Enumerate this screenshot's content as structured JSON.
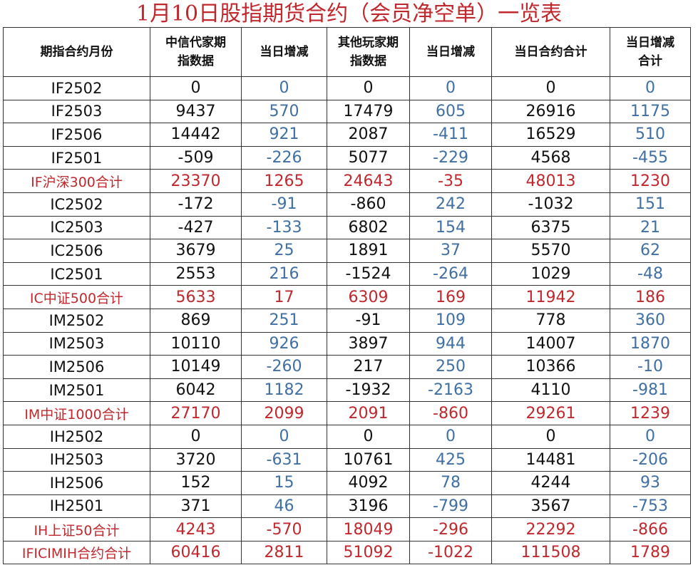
{
  "title": "1月10日股指期货合约（会员净空单）一览表",
  "table": {
    "header": [
      "期指合约月份",
      "中信代家期指数据",
      "当日增减",
      "其他玩家期指数据",
      "当日增减",
      "当日合约合计",
      "当日增减合计"
    ],
    "rows": [
      [
        "IF2502",
        0,
        0,
        0,
        0,
        0,
        0
      ],
      [
        "IF2503",
        9437,
        570,
        17479,
        605,
        26916,
        1175
      ],
      [
        "IF2506",
        14442,
        921,
        2087,
        -411,
        16529,
        510
      ],
      [
        "IF2501",
        -509,
        -226,
        5077,
        -229,
        4568,
        -455
      ],
      [
        "IF沪深300合计",
        23370,
        1265,
        24643,
        -35,
        48013,
        1230
      ],
      [
        "IC2502",
        -172,
        -91,
        -860,
        242,
        -1032,
        151
      ],
      [
        "IC2503",
        -427,
        -133,
        6802,
        154,
        6375,
        21
      ],
      [
        "IC2506",
        3679,
        25,
        1891,
        37,
        5570,
        62
      ],
      [
        "IC2501",
        2553,
        216,
        -1524,
        -264,
        1029,
        -48
      ],
      [
        "IC中证500合计",
        5633,
        17,
        6309,
        169,
        11942,
        186
      ],
      [
        "IM2502",
        869,
        251,
        -91,
        109,
        778,
        360
      ],
      [
        "IM2503",
        10110,
        926,
        3897,
        944,
        14007,
        1870
      ],
      [
        "IM2506",
        10149,
        -260,
        217,
        250,
        10366,
        -10
      ],
      [
        "IM2501",
        6042,
        1182,
        -1932,
        -2163,
        4110,
        -981
      ],
      [
        "IM中证1000合计",
        27170,
        2099,
        2091,
        -860,
        29261,
        1239
      ],
      [
        "IH2502",
        0,
        0,
        0,
        0,
        0,
        0
      ],
      [
        "IH2503",
        3720,
        -631,
        10761,
        425,
        14481,
        -206
      ],
      [
        "IH2506",
        152,
        15,
        4092,
        78,
        4244,
        93
      ],
      [
        "IH2501",
        371,
        46,
        3196,
        -799,
        3567,
        -753
      ],
      [
        "IH上证50合计",
        4243,
        -570,
        18049,
        -296,
        22292,
        -866
      ],
      [
        "IFICIMIH合约合计",
        60416,
        2811,
        51092,
        -1022,
        111508,
        1789
      ]
    ]
  }
}
